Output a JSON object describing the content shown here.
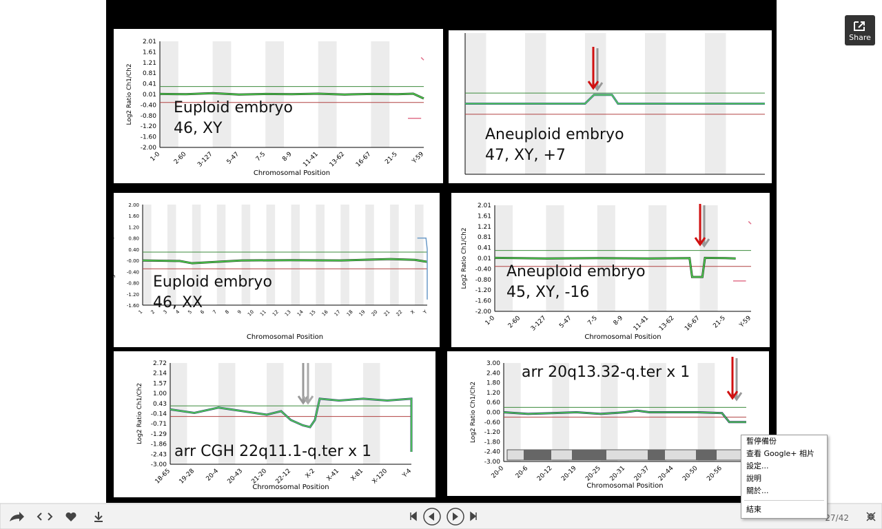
{
  "slide": {
    "panels": [
      {
        "ylabel": "Log2 Ratio Ch1/Ch2",
        "xlabel": "Chromosomal Position",
        "annotation": [
          "Euploid embryo",
          "46, XY"
        ],
        "ylim": [
          -2.0,
          2.01
        ],
        "thresholds": [
          0.3,
          -0.3
        ],
        "yticks": [
          "2.01",
          "1.61",
          "1.21",
          "0.81",
          "0.41",
          "0.01",
          "-0.40",
          "-0.80",
          "-1.20",
          "-1.60",
          "-2.00"
        ],
        "xticks": [
          "1-0",
          "2-60",
          "3-127",
          "5-47",
          "7-5",
          "8-9",
          "11-41",
          "13-62",
          "16-67",
          "21-5",
          "Y-59"
        ],
        "traces": [
          {
            "color": "#1a3d1a",
            "x": [
              0,
              1,
              2,
              3,
              4,
              5,
              6,
              7,
              8,
              9,
              9.6,
              10
            ],
            "values": [
              0.02,
              0.01,
              0.05,
              0,
              0.02,
              0.01,
              0.03,
              0,
              0.02,
              0.01,
              0.03,
              -0.15
            ]
          },
          {
            "color": "#e0708a",
            "x": [
              9.4,
              9.9
            ],
            "values": [
              -0.9,
              -0.9
            ]
          },
          {
            "color": "#e0708a",
            "x": [
              9.9,
              10
            ],
            "values": [
              1.4,
              1.3
            ]
          }
        ]
      },
      {
        "annotation": [
          "Aneuploid embryo",
          "47, XY, +7"
        ],
        "ylim": [
          -2,
          2
        ],
        "thresholds": [
          0.3,
          -0.3
        ],
        "traces": [
          {
            "color": "#3a5a8a",
            "x": [
              0,
              1,
              2,
              3,
              4,
              4.3,
              4.9,
              5.1,
              6,
              7,
              8,
              9,
              10
            ],
            "values": [
              0,
              0,
              0,
              0,
              0,
              0.25,
              0.25,
              0,
              0,
              0,
              0,
              0,
              0
            ]
          }
        ]
      },
      {
        "ylabel": "Log2 Ratio Ch1/Ch2",
        "xlabel": "Chromosomal Position",
        "annotation": [
          "Euploid embryo",
          "46, XX"
        ],
        "ylim": [
          -1.6,
          2.0
        ],
        "thresholds": [
          0.3,
          -0.3
        ],
        "yticks": [
          "2.00",
          "1.60",
          "1.20",
          "0.80",
          "0.40",
          "-0.00",
          "-0.40",
          "-0.80",
          "-1.20",
          "-1.60"
        ],
        "xticks": [
          "1",
          "2",
          "3",
          "4",
          "5",
          "6",
          "7",
          "8",
          "9",
          "10",
          "11",
          "12",
          "13",
          "14",
          "15",
          "16",
          "17",
          "18",
          "19",
          "20",
          "21",
          "22",
          "X",
          "Y"
        ],
        "traces": [
          {
            "color": "#1a3d1a",
            "x": [
              0,
              3,
              4,
              8,
              12,
              16,
              20,
              22,
              23
            ],
            "values": [
              0,
              -0.02,
              -0.1,
              0,
              0.01,
              0,
              0.05,
              0.02,
              -0.05
            ]
          },
          {
            "color": "#6a9ac8",
            "x": [
              22.2,
              22.9,
              23,
              23
            ],
            "values": [
              0.8,
              0.8,
              0.4,
              -1.4
            ]
          }
        ]
      },
      {
        "ylabel": "Log2 Ratio Ch1/Ch2",
        "xlabel": "Chromosomal Position",
        "annotation": [
          "Aneuploid embryo",
          "45, XY, -16"
        ],
        "ylim": [
          -2.0,
          2.01
        ],
        "thresholds": [
          0.3,
          -0.3
        ],
        "yticks": [
          "2.01",
          "1.61",
          "1.21",
          "0.81",
          "0.41",
          "0.01",
          "-0.40",
          "-0.80",
          "-1.20",
          "-1.60",
          "-2.00"
        ],
        "xticks": [
          "1-0",
          "2-60",
          "3-127",
          "5-47",
          "7-5",
          "8-9",
          "11-41",
          "13-62",
          "16-67",
          "21-5",
          "Y-59"
        ],
        "traces": [
          {
            "color": "#1a3d1a",
            "x": [
              0,
              2,
              4,
              6,
              7.6,
              7.7,
              8.1,
              8.2,
              9,
              9.4
            ],
            "values": [
              0.02,
              0,
              0.01,
              0,
              0.01,
              -0.7,
              -0.7,
              0.02,
              0.01,
              0
            ]
          },
          {
            "color": "#e0708a",
            "x": [
              9.3,
              9.8
            ],
            "values": [
              -0.85,
              -0.85
            ]
          },
          {
            "color": "#e0708a",
            "x": [
              9.9,
              10
            ],
            "values": [
              1.4,
              1.3
            ]
          }
        ]
      },
      {
        "ylabel": "Log2 Ratio Ch1/Ch2",
        "xlabel": "Chromosomal Position",
        "annotation": [
          "arr CGH 22q11.1-q.ter x 1"
        ],
        "ylim": [
          -3.0,
          2.72
        ],
        "thresholds": [
          0.3,
          -0.3
        ],
        "yticks": [
          "2.72",
          "2.14",
          "1.57",
          "1.00",
          "0.43",
          "-0.14",
          "-0.71",
          "-1.29",
          "-1.86",
          "-2.43",
          "-3.00"
        ],
        "xticks": [
          "18-65",
          "19-28",
          "20-4",
          "20-43",
          "21-20",
          "22-12",
          "X-2",
          "X-41",
          "X-81",
          "X-120",
          "Y-4"
        ],
        "traces": [
          {
            "color": "#2a4a6a",
            "x": [
              0,
              1,
              2,
              3,
              4,
              4.6,
              5,
              5.5,
              5.8,
              6,
              6.2,
              7,
              8,
              9,
              10,
              10,
              10
            ],
            "values": [
              0.1,
              -0.1,
              0.2,
              0,
              -0.2,
              0,
              -0.5,
              -0.8,
              -0.9,
              -0.5,
              0.7,
              0.6,
              0.7,
              0.6,
              0.7,
              0,
              -2.3
            ]
          }
        ]
      },
      {
        "ylabel": "Log2 Ratio Ch1/Ch2",
        "xlabel": "Chromosomal Position",
        "annotation": [
          "arr 20q13.32-q.ter x 1"
        ],
        "ylim": [
          -3.0,
          3.0
        ],
        "thresholds": [
          0.3,
          -0.3
        ],
        "yticks": [
          "3.00",
          "2.40",
          "1.80",
          "1.20",
          "0.60",
          "0.00",
          "-0.60",
          "-1.20",
          "-1.80",
          "-2.40",
          "-3.00"
        ],
        "xticks": [
          "20-0",
          "20-6",
          "20-12",
          "20-19",
          "20-25",
          "20-31",
          "20-37",
          "20-44",
          "20-50",
          "20-56"
        ],
        "traces": [
          {
            "color": "#1a2a5a",
            "x": [
              0,
              1,
              2,
              3,
              4,
              5,
              5.5,
              6,
              7,
              8,
              9,
              9.3,
              10
            ],
            "values": [
              0,
              -0.1,
              -0.05,
              0,
              -0.1,
              0,
              0.1,
              0,
              0,
              0,
              -0.05,
              -0.6,
              -0.6
            ]
          }
        ]
      }
    ]
  },
  "menu": [
    "暫停備份",
    "查看 Google+ 相片",
    "設定...",
    "說明",
    "關於...",
    "結束"
  ],
  "toolbar": {
    "counter": "27/42",
    "share": "Share"
  }
}
